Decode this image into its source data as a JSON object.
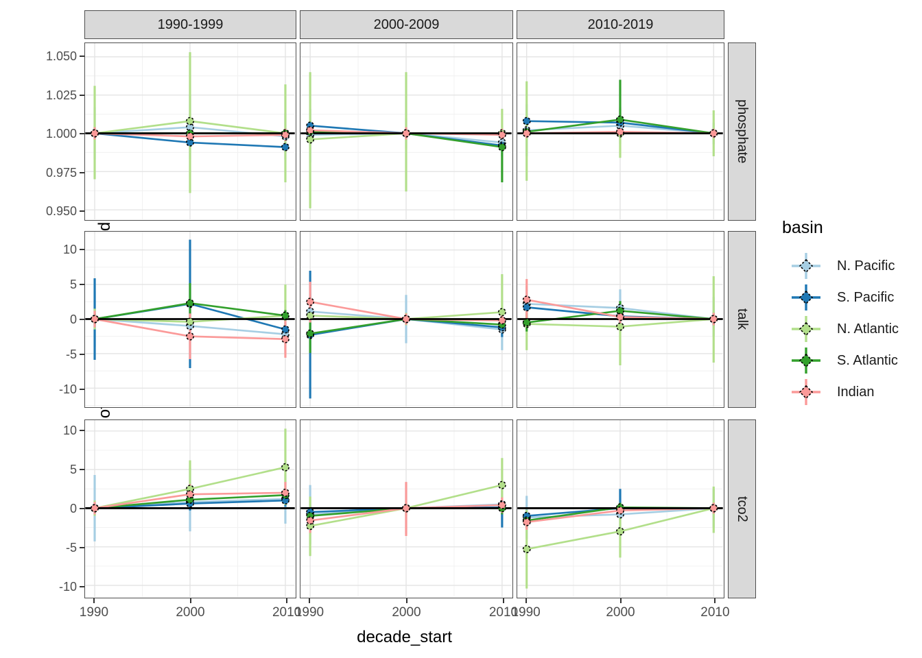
{
  "figure": {
    "y_axis_title": "offset_adj_mean_weighted",
    "x_axis_title": "decade_start",
    "legend": {
      "title": "basin",
      "entries": [
        {
          "label": "N. Pacific",
          "color": "#A6CEE3"
        },
        {
          "label": "S. Pacific",
          "color": "#1F78B4"
        },
        {
          "label": "N. Atlantic",
          "color": "#B2DF8A"
        },
        {
          "label": "S. Atlantic",
          "color": "#33A02C"
        },
        {
          "label": "Indian",
          "color": "#FB9A99"
        }
      ]
    },
    "style": {
      "strip_background": "#D9D9D9",
      "panel_border": "#4D4D4D",
      "grid_major": "#E4E4E4",
      "grid_minor": "#F1F1F1",
      "reference_line": "#000000",
      "tick_text": "#4D4D4D"
    }
  },
  "chart_data": {
    "type": "line",
    "title": "",
    "xlabel": "decade_start",
    "ylabel": "offset_adj_mean_weighted",
    "facet_columns": [
      "1990-1999",
      "2000-2009",
      "2010-2019"
    ],
    "facet_rows": [
      "phosphate",
      "talk",
      "tco2"
    ],
    "x": [
      1990,
      2000,
      2010
    ],
    "x_tick_labels": [
      "1990",
      "2000",
      "2010"
    ],
    "legend_position": "right",
    "grid": true,
    "series_order": [
      "N. Pacific",
      "S. Pacific",
      "N. Atlantic",
      "S. Atlantic",
      "Indian"
    ],
    "colors": {
      "N. Pacific": "#A6CEE3",
      "S. Pacific": "#1F78B4",
      "N. Atlantic": "#B2DF8A",
      "S. Atlantic": "#33A02C",
      "Indian": "#FB9A99"
    },
    "row_scales": {
      "phosphate": {
        "domain": [
          0.9438,
          1.0589
        ],
        "tick_values": [
          0.95,
          0.975,
          1.0,
          1.025,
          1.05
        ],
        "ticks": [
          "0.950",
          "0.975",
          "1.000",
          "1.025",
          "1.050"
        ],
        "ref": 1.0
      },
      "talk": {
        "domain": [
          -12.65,
          12.65
        ],
        "tick_values": [
          -10,
          -5,
          0,
          5,
          10
        ],
        "ticks": [
          "-10",
          "-5",
          "0",
          "5",
          "10"
        ],
        "ref": 0
      },
      "tco2": {
        "domain": [
          -11.5,
          11.4
        ],
        "tick_values": [
          -10,
          -5,
          0,
          5,
          10
        ],
        "ticks": [
          "-10",
          "-5",
          "0",
          "5",
          "10"
        ],
        "ref": 0
      }
    },
    "panels": [
      {
        "row": "phosphate",
        "col": "1990-1999",
        "series": [
          {
            "name": "N. Pacific",
            "y": [
              1.0,
              1.004,
              0.998
            ],
            "lo": [
              0.983,
              0.983,
              0.983
            ],
            "hi": [
              1.017,
              1.025,
              1.013
            ]
          },
          {
            "name": "S. Pacific",
            "y": [
              1.0,
              0.994,
              0.991
            ],
            "lo": [
              0.997,
              0.991,
              0.988
            ],
            "hi": [
              1.003,
              0.997,
              0.994
            ]
          },
          {
            "name": "N. Atlantic",
            "y": [
              1.0,
              1.008,
              1.0
            ],
            "lo": [
              0.97,
              0.961,
              0.968
            ],
            "hi": [
              1.031,
              1.053,
              1.032
            ]
          },
          {
            "name": "S. Atlantic",
            "y": [
              1.0,
              1.0,
              1.0
            ],
            "lo": [
              0.998,
              0.997,
              0.997
            ],
            "hi": [
              1.002,
              1.003,
              1.003
            ]
          },
          {
            "name": "Indian",
            "y": [
              1.0,
              0.998,
              0.999
            ],
            "lo": [
              0.996,
              0.994,
              0.995
            ],
            "hi": [
              1.004,
              1.002,
              1.003
            ]
          }
        ]
      },
      {
        "row": "phosphate",
        "col": "2000-2009",
        "series": [
          {
            "name": "N. Pacific",
            "y": [
              0.999,
              1.0,
              0.994
            ],
            "lo": [
              0.981,
              0.99,
              0.985
            ],
            "hi": [
              1.016,
              1.01,
              1.003
            ]
          },
          {
            "name": "S. Pacific",
            "y": [
              1.005,
              1.0,
              0.992
            ],
            "lo": [
              1.002,
              0.997,
              0.989
            ],
            "hi": [
              1.008,
              1.003,
              0.995
            ]
          },
          {
            "name": "N. Atlantic",
            "y": [
              0.996,
              1.0,
              1.0
            ],
            "lo": [
              0.951,
              0.962,
              0.99
            ],
            "hi": [
              1.04,
              1.04,
              1.016
            ]
          },
          {
            "name": "S. Atlantic",
            "y": [
              1.001,
              1.0,
              0.991
            ],
            "lo": [
              0.999,
              0.998,
              0.968
            ],
            "hi": [
              1.003,
              1.002,
              0.994
            ]
          },
          {
            "name": "Indian",
            "y": [
              1.002,
              1.0,
              0.999
            ],
            "lo": [
              0.998,
              0.996,
              0.995
            ],
            "hi": [
              1.006,
              1.004,
              1.003
            ]
          }
        ]
      },
      {
        "row": "phosphate",
        "col": "2010-2019",
        "series": [
          {
            "name": "N. Pacific",
            "y": [
              1.002,
              1.005,
              1.0
            ],
            "lo": [
              0.985,
              0.993,
              0.993
            ],
            "hi": [
              1.019,
              1.017,
              1.007
            ]
          },
          {
            "name": "S. Pacific",
            "y": [
              1.008,
              1.007,
              1.0
            ],
            "lo": [
              1.005,
              1.004,
              0.998
            ],
            "hi": [
              1.011,
              1.01,
              1.002
            ]
          },
          {
            "name": "N. Atlantic",
            "y": [
              1.0,
              1.0,
              1.0
            ],
            "lo": [
              0.969,
              0.984,
              0.985
            ],
            "hi": [
              1.034,
              1.016,
              1.015
            ]
          },
          {
            "name": "S. Atlantic",
            "y": [
              1.001,
              1.009,
              1.0
            ],
            "lo": [
              0.999,
              1.005,
              0.998
            ],
            "hi": [
              1.003,
              1.035,
              1.002
            ]
          },
          {
            "name": "Indian",
            "y": [
              1.0,
              1.001,
              1.0
            ],
            "lo": [
              0.997,
              0.998,
              0.997
            ],
            "hi": [
              1.003,
              1.004,
              1.003
            ]
          }
        ]
      },
      {
        "row": "talk",
        "col": "1990-1999",
        "series": [
          {
            "name": "N. Pacific",
            "y": [
              0,
              -1.0,
              -2.2
            ],
            "lo": [
              -4.0,
              -3.0,
              -5.0
            ],
            "hi": [
              4.0,
              1.0,
              0.5
            ]
          },
          {
            "name": "S. Pacific",
            "y": [
              0,
              2.2,
              -1.5
            ],
            "lo": [
              -5.9,
              -7.1,
              -2.5
            ],
            "hi": [
              5.9,
              11.5,
              -0.5
            ]
          },
          {
            "name": "N. Atlantic",
            "y": [
              0,
              -0.4,
              0.5
            ],
            "lo": [
              -1.5,
              -1.5,
              -3.0
            ],
            "hi": [
              1.5,
              0.7,
              5.0
            ]
          },
          {
            "name": "S. Atlantic",
            "y": [
              0,
              2.3,
              0.5
            ],
            "lo": [
              -0.8,
              -0.3,
              -0.3
            ],
            "hi": [
              0.8,
              5.2,
              1.3
            ]
          },
          {
            "name": "Indian",
            "y": [
              0,
              -2.5,
              -2.9
            ],
            "lo": [
              -1.2,
              -5.8,
              -5.6
            ],
            "hi": [
              1.2,
              0.8,
              -0.2
            ]
          }
        ]
      },
      {
        "row": "talk",
        "col": "2000-2009",
        "series": [
          {
            "name": "N. Pacific",
            "y": [
              1.1,
              0,
              -1.5
            ],
            "lo": [
              -1.6,
              -3.5,
              -4.5
            ],
            "hi": [
              3.7,
              3.5,
              1.5
            ]
          },
          {
            "name": "S. Pacific",
            "y": [
              -2.3,
              0,
              -1.2
            ],
            "lo": [
              -11.5,
              -0.6,
              -2.6
            ],
            "hi": [
              7.0,
              0.6,
              0.2
            ]
          },
          {
            "name": "N. Atlantic",
            "y": [
              0.5,
              0,
              1.0
            ],
            "lo": [
              -0.4,
              -0.9,
              -0.6
            ],
            "hi": [
              1.3,
              0.9,
              6.5
            ]
          },
          {
            "name": "S. Atlantic",
            "y": [
              -2.1,
              0,
              -0.8
            ],
            "lo": [
              -4.9,
              -0.5,
              -2.0
            ],
            "hi": [
              0.6,
              0.5,
              0.4
            ]
          },
          {
            "name": "Indian",
            "y": [
              2.5,
              0,
              -0.2
            ],
            "lo": [
              -0.5,
              -0.8,
              -1.2
            ],
            "hi": [
              5.4,
              0.8,
              0.8
            ]
          }
        ]
      },
      {
        "row": "talk",
        "col": "2010-2019",
        "series": [
          {
            "name": "N. Pacific",
            "y": [
              2.2,
              1.6,
              0
            ],
            "lo": [
              -0.5,
              -1.2,
              -2.5
            ],
            "hi": [
              4.8,
              4.3,
              3.2
            ]
          },
          {
            "name": "S. Pacific",
            "y": [
              1.7,
              0.4,
              0
            ],
            "lo": [
              0.2,
              -0.8,
              -1.0
            ],
            "hi": [
              3.2,
              1.6,
              1.0
            ]
          },
          {
            "name": "N. Atlantic",
            "y": [
              -0.7,
              -1.1,
              0
            ],
            "lo": [
              -4.5,
              -6.7,
              -6.3
            ],
            "hi": [
              3.1,
              1.5,
              6.2
            ]
          },
          {
            "name": "S. Atlantic",
            "y": [
              -0.5,
              1.2,
              0
            ],
            "lo": [
              -1.8,
              -0.2,
              -0.8
            ],
            "hi": [
              0.8,
              2.6,
              0.8
            ]
          },
          {
            "name": "Indian",
            "y": [
              2.8,
              0.3,
              0
            ],
            "lo": [
              -0.2,
              -0.9,
              -0.9
            ],
            "hi": [
              5.8,
              1.5,
              0.9
            ]
          }
        ]
      },
      {
        "row": "tco2",
        "col": "1990-1999",
        "series": [
          {
            "name": "N. Pacific",
            "y": [
              0,
              0.8,
              1.2
            ],
            "lo": [
              -4.3,
              -3.0,
              -2.0
            ],
            "hi": [
              4.3,
              5.2,
              4.4
            ]
          },
          {
            "name": "S. Pacific",
            "y": [
              0,
              0.6,
              1.0
            ],
            "lo": [
              -0.6,
              -0.3,
              0.2
            ],
            "hi": [
              0.6,
              1.5,
              1.8
            ]
          },
          {
            "name": "N. Atlantic",
            "y": [
              0,
              2.5,
              5.3
            ],
            "lo": [
              -1.0,
              0.3,
              0.4
            ],
            "hi": [
              1.0,
              6.2,
              10.3
            ]
          },
          {
            "name": "S. Atlantic",
            "y": [
              0,
              1.1,
              1.7
            ],
            "lo": [
              -0.5,
              0.2,
              0.8
            ],
            "hi": [
              0.5,
              2.0,
              2.6
            ]
          },
          {
            "name": "Indian",
            "y": [
              0,
              1.8,
              2.0
            ],
            "lo": [
              -0.8,
              0.5,
              0.6
            ],
            "hi": [
              0.8,
              3.1,
              3.4
            ]
          }
        ]
      },
      {
        "row": "tco2",
        "col": "2000-2009",
        "series": [
          {
            "name": "N. Pacific",
            "y": [
              -0.8,
              0,
              0.5
            ],
            "lo": [
              -4.7,
              -3.3,
              -1.5
            ],
            "hi": [
              3.0,
              3.3,
              2.5
            ]
          },
          {
            "name": "S. Pacific",
            "y": [
              -0.5,
              0,
              0.1
            ],
            "lo": [
              -1.3,
              -0.5,
              -2.5
            ],
            "hi": [
              0.3,
              0.5,
              0.9
            ]
          },
          {
            "name": "N. Atlantic",
            "y": [
              -2.3,
              0,
              3.0
            ],
            "lo": [
              -6.2,
              -1.0,
              -0.4
            ],
            "hi": [
              1.5,
              1.0,
              6.5
            ]
          },
          {
            "name": "S. Atlantic",
            "y": [
              -1.0,
              0,
              0.0
            ],
            "lo": [
              -2.0,
              -0.4,
              -0.8
            ],
            "hi": [
              0.0,
              0.4,
              0.8
            ]
          },
          {
            "name": "Indian",
            "y": [
              -1.6,
              0,
              0.4
            ],
            "lo": [
              -3.2,
              -3.6,
              -0.6
            ],
            "hi": [
              0.0,
              3.4,
              1.4
            ]
          }
        ]
      },
      {
        "row": "tco2",
        "col": "2010-2019",
        "series": [
          {
            "name": "N. Pacific",
            "y": [
              -1.2,
              -0.8,
              0
            ],
            "lo": [
              -4.0,
              -3.0,
              -2.5
            ],
            "hi": [
              1.6,
              2.3,
              2.5
            ]
          },
          {
            "name": "S. Pacific",
            "y": [
              -1.0,
              0.0,
              0
            ],
            "lo": [
              -1.8,
              -0.8,
              -0.6
            ],
            "hi": [
              -0.2,
              2.5,
              0.6
            ]
          },
          {
            "name": "N. Atlantic",
            "y": [
              -5.3,
              -3.0,
              0
            ],
            "lo": [
              -10.4,
              -6.4,
              -3.2
            ],
            "hi": [
              -0.2,
              0.4,
              2.8
            ]
          },
          {
            "name": "S. Atlantic",
            "y": [
              -1.6,
              0.1,
              0
            ],
            "lo": [
              -2.6,
              -0.5,
              -0.6
            ],
            "hi": [
              -0.6,
              0.7,
              0.6
            ]
          },
          {
            "name": "Indian",
            "y": [
              -1.8,
              -0.3,
              0
            ],
            "lo": [
              -2.8,
              -1.1,
              -0.7
            ],
            "hi": [
              -0.8,
              0.5,
              0.7
            ]
          }
        ]
      }
    ]
  }
}
